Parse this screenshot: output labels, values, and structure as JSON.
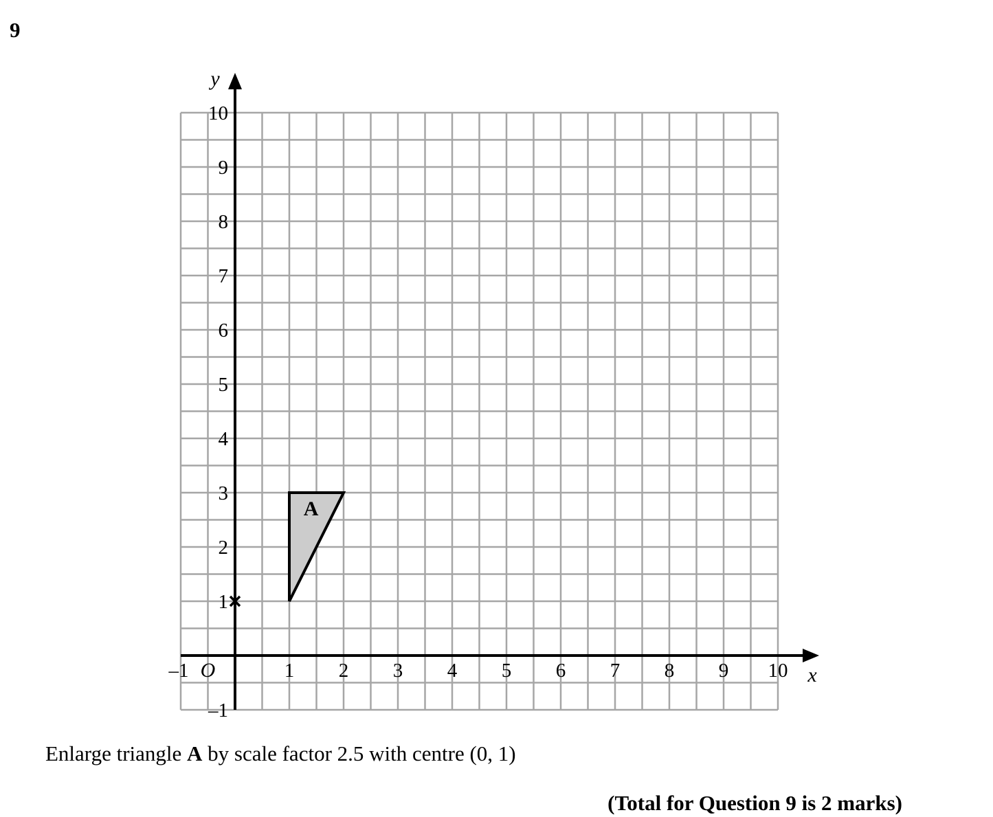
{
  "question": {
    "number": "9",
    "instruction_parts": {
      "before": "Enlarge triangle ",
      "shape_name": "A",
      "after": " by scale factor 2.5 with centre (0, 1)"
    },
    "total_marks": "(Total for Question 9 is 2 marks)"
  },
  "grid": {
    "x_axis_label": "x",
    "y_axis_label": "y",
    "origin_label": "O",
    "x_range": [
      -1,
      10
    ],
    "y_range": [
      -1,
      10
    ],
    "minor_step": 0.5,
    "x_tick_labels": [
      "–1",
      "1",
      "2",
      "3",
      "4",
      "5",
      "6",
      "7",
      "8",
      "9",
      "10"
    ],
    "x_tick_values": [
      -1,
      1,
      2,
      3,
      4,
      5,
      6,
      7,
      8,
      9,
      10
    ],
    "y_tick_labels": [
      "–1",
      "1",
      "2",
      "3",
      "4",
      "5",
      "6",
      "7",
      "8",
      "9",
      "10"
    ],
    "y_tick_values": [
      -1,
      1,
      2,
      3,
      4,
      5,
      6,
      7,
      8,
      9,
      10
    ],
    "triangle": {
      "label": "A",
      "vertices": [
        [
          1,
          1
        ],
        [
          1,
          3
        ],
        [
          2,
          3
        ]
      ],
      "fill_color": "#cccccc"
    },
    "centre_mark": [
      0,
      1
    ],
    "grid_line_color": "#a6a6a6"
  }
}
